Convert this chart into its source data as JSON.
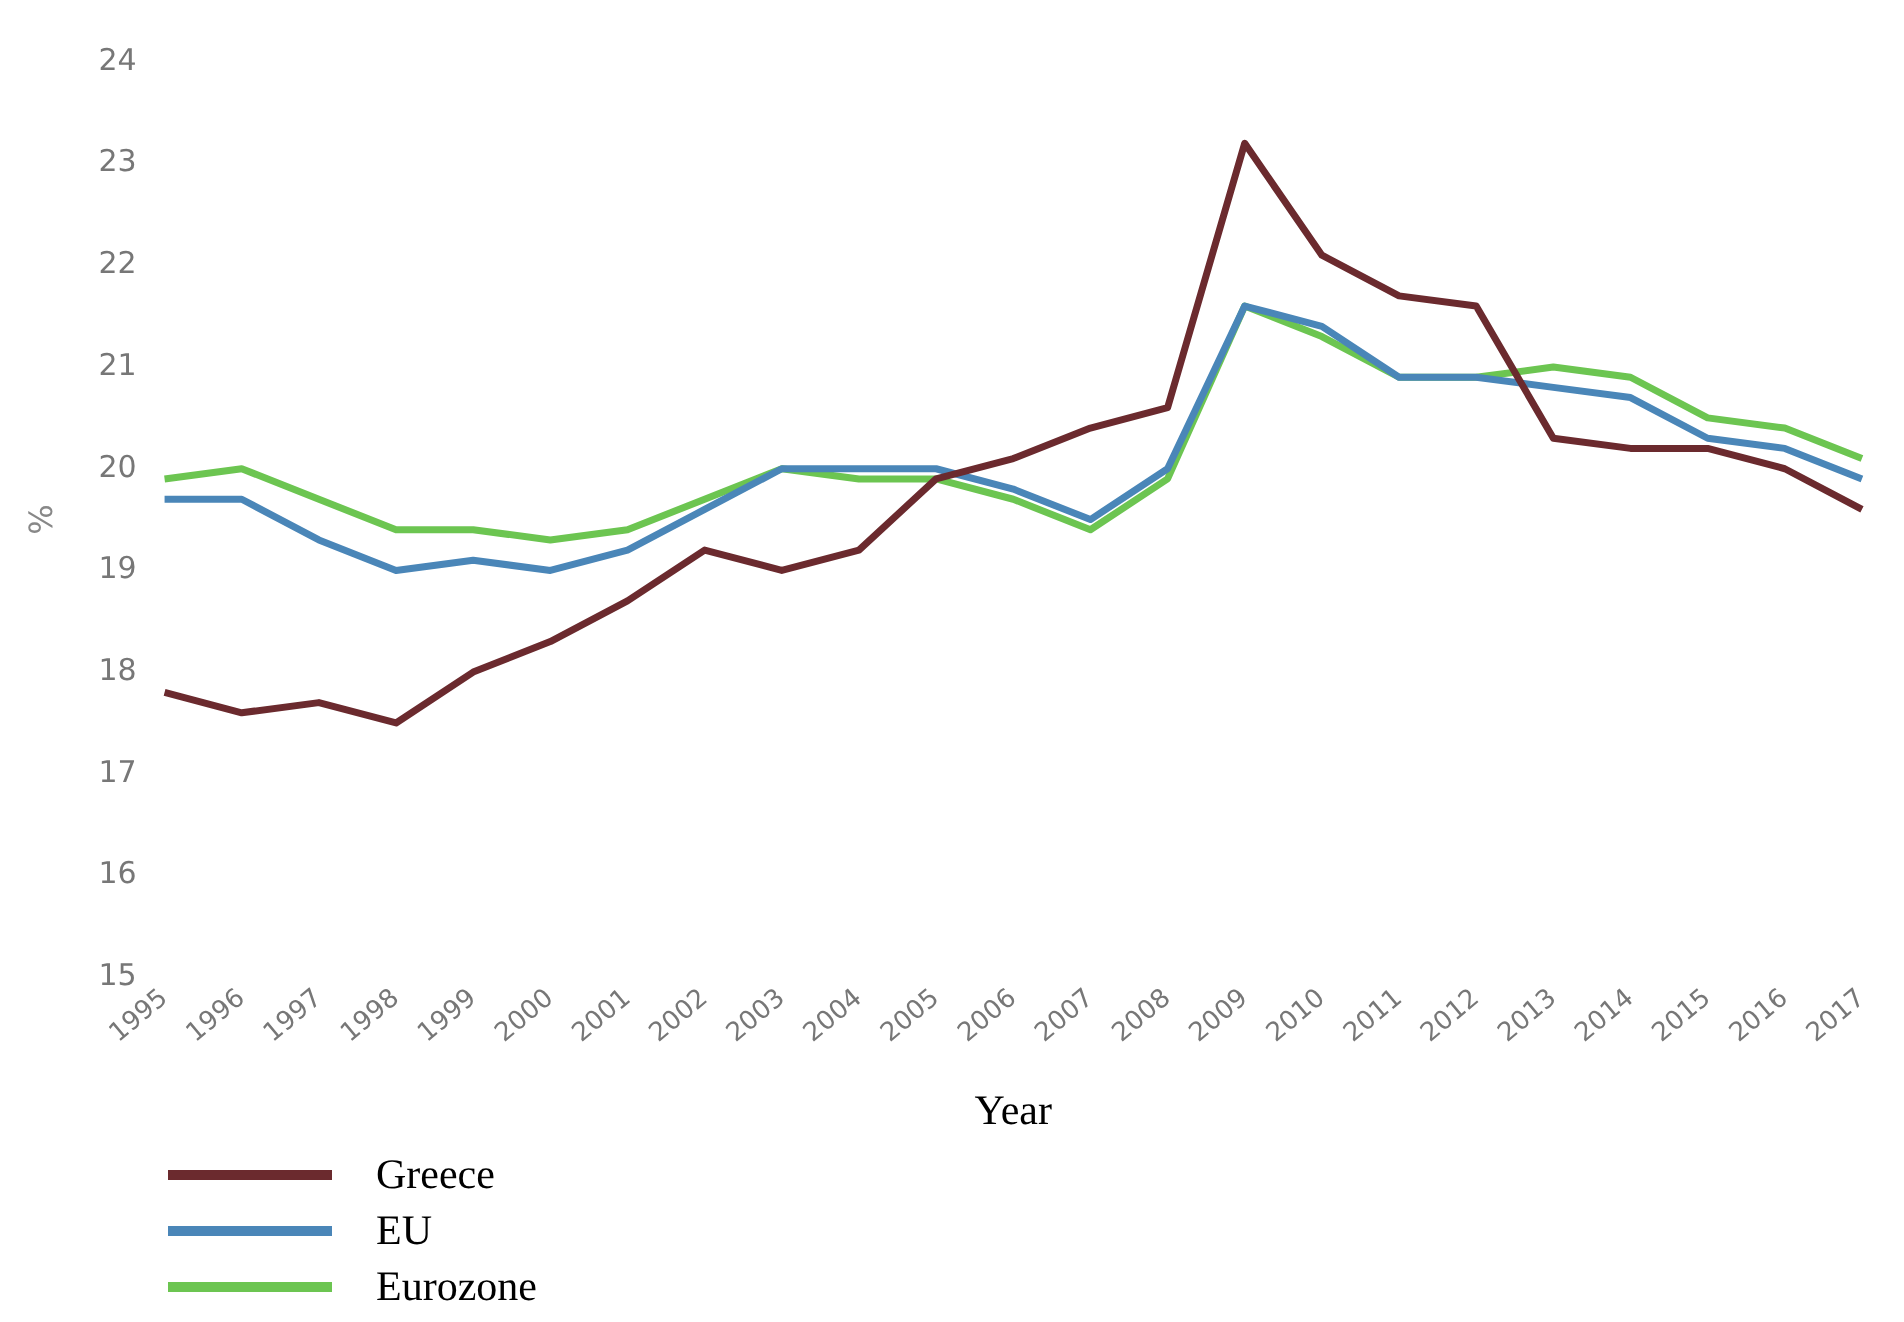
{
  "chart_data": {
    "type": "line",
    "xlabel": "Year",
    "ylabel": "%",
    "categories": [
      "1995",
      "1996",
      "1997",
      "1998",
      "1999",
      "2000",
      "2001",
      "2002",
      "2003",
      "2004",
      "2005",
      "2006",
      "2007",
      "2008",
      "2009",
      "2010",
      "2011",
      "2012",
      "2013",
      "2014",
      "2015",
      "2016",
      "2017"
    ],
    "series": [
      {
        "name": "Greece",
        "color": "#6b2a2e",
        "values": [
          17.8,
          17.6,
          17.7,
          17.5,
          18.0,
          18.3,
          18.7,
          19.2,
          19.0,
          19.2,
          19.9,
          20.1,
          20.4,
          20.6,
          23.2,
          22.1,
          21.7,
          21.6,
          20.3,
          20.2,
          20.2,
          20.0,
          19.6
        ]
      },
      {
        "name": "EU",
        "color": "#4a86b8",
        "values": [
          19.7,
          19.7,
          19.3,
          19.0,
          19.1,
          19.0,
          19.2,
          19.6,
          20.0,
          20.0,
          20.0,
          19.8,
          19.5,
          20.0,
          21.6,
          21.4,
          20.9,
          20.9,
          20.8,
          20.7,
          20.3,
          20.2,
          19.9
        ]
      },
      {
        "name": "Eurozone",
        "color": "#6cc551",
        "values": [
          19.9,
          20.0,
          19.7,
          19.4,
          19.4,
          19.3,
          19.4,
          19.7,
          20.0,
          19.9,
          19.9,
          19.7,
          19.4,
          19.9,
          21.6,
          21.3,
          20.9,
          20.9,
          21.0,
          20.9,
          20.5,
          20.4,
          20.1
        ]
      }
    ],
    "ylim": [
      15,
      24
    ],
    "yticks": [
      15,
      16,
      17,
      18,
      19,
      20,
      21,
      22,
      23,
      24
    ],
    "grid": false,
    "legend": "bottom left",
    "marker": "none",
    "line_style": "solid"
  }
}
